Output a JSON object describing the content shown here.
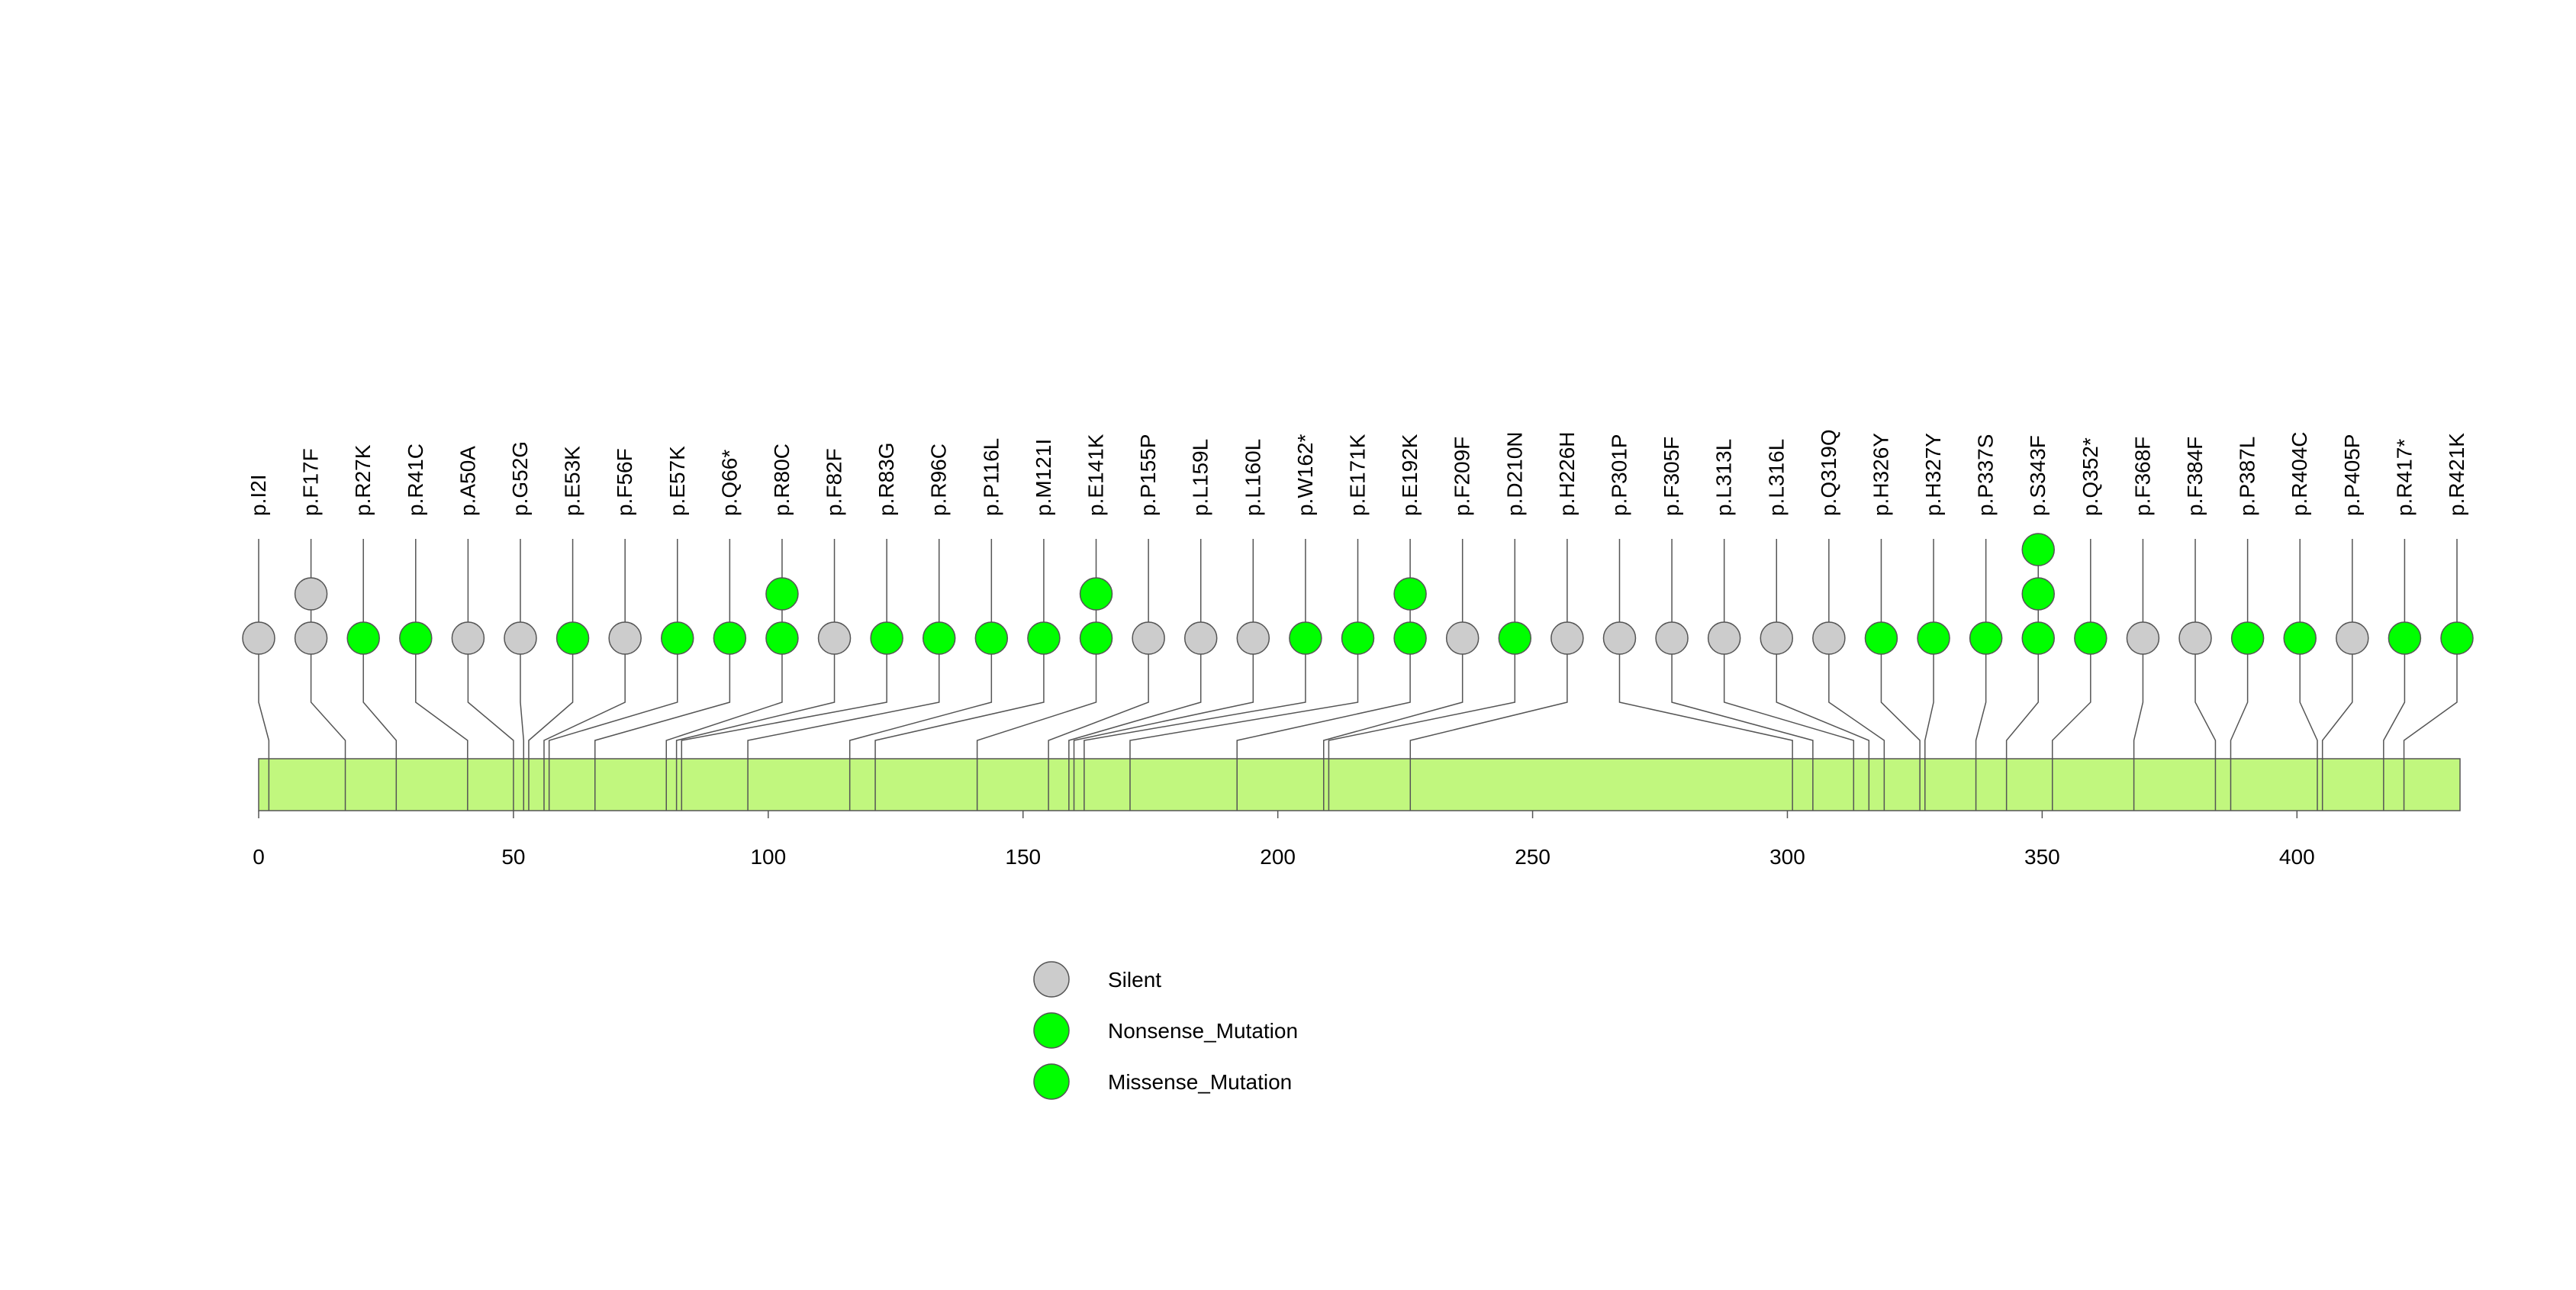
{
  "chart_data": {
    "type": "lollipop",
    "title": "",
    "xlabel": "",
    "ylabel": "",
    "protein_length": 432,
    "xlim": [
      0,
      432
    ],
    "x_ticks": [
      0,
      50,
      100,
      150,
      200,
      250,
      300,
      350,
      400
    ],
    "colors": {
      "silent": "#cccccc",
      "mutation": "#00ff00",
      "domain": "#c1f77e",
      "stroke": "#555555"
    },
    "legend": [
      {
        "label": "Silent",
        "color": "#cccccc"
      },
      {
        "label": "Nonsense_Mutation",
        "color": "#00ff00"
      },
      {
        "label": "Missense_Mutation",
        "color": "#00ff00"
      }
    ],
    "mutations": [
      {
        "label": "p.I2I",
        "pos": 2,
        "counts": [
          "silent"
        ]
      },
      {
        "label": "p.F17F",
        "pos": 17,
        "counts": [
          "silent",
          "silent"
        ]
      },
      {
        "label": "p.R27K",
        "pos": 27,
        "counts": [
          "missense"
        ]
      },
      {
        "label": "p.R41C",
        "pos": 41,
        "counts": [
          "missense"
        ]
      },
      {
        "label": "p.A50A",
        "pos": 50,
        "counts": [
          "silent"
        ]
      },
      {
        "label": "p.G52G",
        "pos": 52,
        "counts": [
          "silent"
        ]
      },
      {
        "label": "p.E53K",
        "pos": 53,
        "counts": [
          "missense"
        ]
      },
      {
        "label": "p.F56F",
        "pos": 56,
        "counts": [
          "silent"
        ]
      },
      {
        "label": "p.E57K",
        "pos": 57,
        "counts": [
          "missense"
        ]
      },
      {
        "label": "p.Q66*",
        "pos": 66,
        "counts": [
          "nonsense"
        ]
      },
      {
        "label": "p.R80C",
        "pos": 80,
        "counts": [
          "missense",
          "missense"
        ]
      },
      {
        "label": "p.F82F",
        "pos": 82,
        "counts": [
          "silent"
        ]
      },
      {
        "label": "p.R83G",
        "pos": 83,
        "counts": [
          "missense"
        ]
      },
      {
        "label": "p.R96C",
        "pos": 96,
        "counts": [
          "missense"
        ]
      },
      {
        "label": "p.P116L",
        "pos": 116,
        "counts": [
          "missense"
        ]
      },
      {
        "label": "p.M121I",
        "pos": 121,
        "counts": [
          "missense"
        ]
      },
      {
        "label": "p.E141K",
        "pos": 141,
        "counts": [
          "missense",
          "missense"
        ]
      },
      {
        "label": "p.P155P",
        "pos": 155,
        "counts": [
          "silent"
        ]
      },
      {
        "label": "p.L159L",
        "pos": 159,
        "counts": [
          "silent"
        ]
      },
      {
        "label": "p.L160L",
        "pos": 160,
        "counts": [
          "silent"
        ]
      },
      {
        "label": "p.W162*",
        "pos": 162,
        "counts": [
          "nonsense"
        ]
      },
      {
        "label": "p.E171K",
        "pos": 171,
        "counts": [
          "missense"
        ]
      },
      {
        "label": "p.E192K",
        "pos": 192,
        "counts": [
          "missense",
          "missense"
        ]
      },
      {
        "label": "p.F209F",
        "pos": 209,
        "counts": [
          "silent"
        ]
      },
      {
        "label": "p.D210N",
        "pos": 210,
        "counts": [
          "missense"
        ]
      },
      {
        "label": "p.H226H",
        "pos": 226,
        "counts": [
          "silent"
        ]
      },
      {
        "label": "p.P301P",
        "pos": 301,
        "counts": [
          "silent"
        ]
      },
      {
        "label": "p.F305F",
        "pos": 305,
        "counts": [
          "silent"
        ]
      },
      {
        "label": "p.L313L",
        "pos": 313,
        "counts": [
          "silent"
        ]
      },
      {
        "label": "p.L316L",
        "pos": 316,
        "counts": [
          "silent"
        ]
      },
      {
        "label": "p.Q319Q",
        "pos": 319,
        "counts": [
          "silent"
        ]
      },
      {
        "label": "p.H326Y",
        "pos": 326,
        "counts": [
          "missense"
        ]
      },
      {
        "label": "p.H327Y",
        "pos": 327,
        "counts": [
          "missense"
        ]
      },
      {
        "label": "p.P337S",
        "pos": 337,
        "counts": [
          "missense"
        ]
      },
      {
        "label": "p.S343F",
        "pos": 343,
        "counts": [
          "missense",
          "missense",
          "missense"
        ]
      },
      {
        "label": "p.Q352*",
        "pos": 352,
        "counts": [
          "nonsense"
        ]
      },
      {
        "label": "p.F368F",
        "pos": 368,
        "counts": [
          "silent"
        ]
      },
      {
        "label": "p.F384F",
        "pos": 384,
        "counts": [
          "silent"
        ]
      },
      {
        "label": "p.P387L",
        "pos": 387,
        "counts": [
          "missense"
        ]
      },
      {
        "label": "p.R404C",
        "pos": 404,
        "counts": [
          "missense"
        ]
      },
      {
        "label": "p.P405P",
        "pos": 405,
        "counts": [
          "silent"
        ]
      },
      {
        "label": "p.R417*",
        "pos": 417,
        "counts": [
          "nonsense"
        ]
      },
      {
        "label": "p.R421K",
        "pos": 421,
        "counts": [
          "missense"
        ]
      }
    ]
  }
}
